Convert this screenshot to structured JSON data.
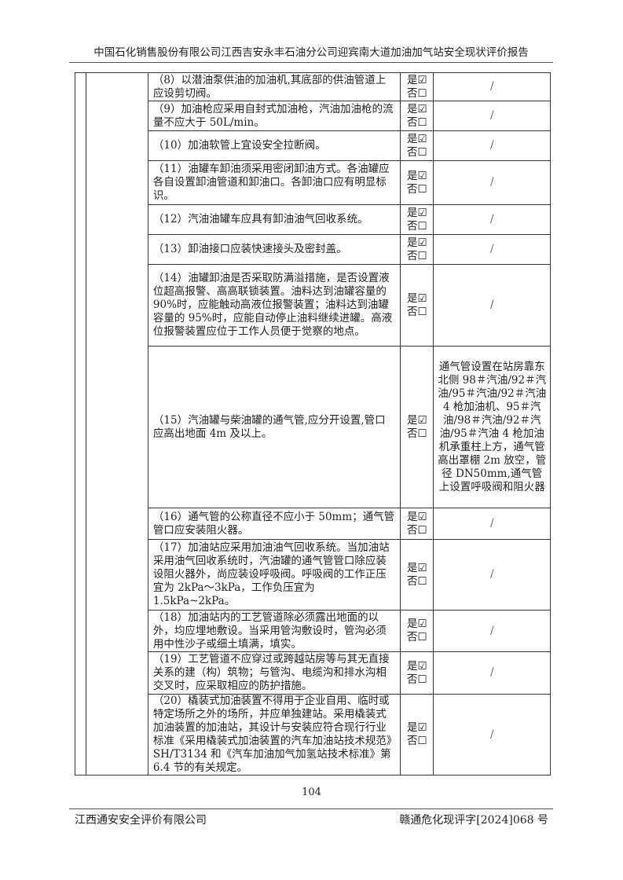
{
  "header": {
    "title": "中国石化销售股份有限公司江西吉安永丰石油分公司迎宾南大道加油加气站安全现状评价报告"
  },
  "table": {
    "rows": [
      {
        "item": "（8）以潜油泵供油的加油机,其底部的供油管道上应设剪切阀。",
        "yes": "是☑",
        "no": "否☐",
        "result": "/"
      },
      {
        "item": "（9）加油枪应采用自封式加油枪，汽油加油枪的流量不应大于 50L/min。",
        "yes": "是☑",
        "no": "否☐",
        "result": "/"
      },
      {
        "item": "（10）加油软管上宜设安全拉断阀。",
        "yes": "是☑",
        "no": "否☐",
        "result": "/"
      },
      {
        "item": "（11）油罐车卸油须采用密闭卸油方式。各油罐应各自设置卸油管道和卸油口。各卸油口应有明显标识。",
        "yes": "是☑",
        "no": "否☐",
        "result": "/"
      },
      {
        "item": "（12）汽油油罐车应具有卸油油气回收系统。",
        "yes": "是☑",
        "no": "否☐",
        "result": "/"
      },
      {
        "item": "（13）卸油接口应装快速接头及密封盖。",
        "yes": "是☑",
        "no": "否☐",
        "result": "/"
      },
      {
        "item": "（14）油罐卸油是否采取防满溢措施，是否设置液位超高报警、高高联锁装置。油料达到油罐容量的 90%时，应能触动高液位报警装置；油料达到油罐容量的 95%时，应能自动停止油料继续进罐。高液位报警装置应位于工作人员便于觉察的地点。",
        "yes": "是☑",
        "no": "否☐",
        "result": "/"
      },
      {
        "item": "（15）汽油罐与柴油罐的通气管,应分开设置,管口应高出地面 4m 及以上。",
        "yes": "是☑",
        "no": "否☐",
        "result": "通气管设置在站房靠东北侧 98＃汽油/92＃汽油/95＃汽油/92＃汽油 4 枪加油机、95＃汽油/98＃汽油/92＃汽油/95＃汽油 4 枪加油机承重柱上方，通气管高出罩棚 2m 放空，管径 DN50mm,通气管上设置呼吸阀和阻火器"
      },
      {
        "item": "（16）通气管的公称直径不应小于 50mm；通气管管口应安装阻火器。",
        "yes": "是☑",
        "no": "否☐",
        "result": "/"
      },
      {
        "item": "（17）加油站应采用加油油气回收系统。当加油站采用油气回收系统时，汽油罐的通气管管口除应装设阻火器外，尚应装设呼吸阀。呼吸阀的工作正压宜为 2kPa～3kPa，工作负压宜为 1.5kPa~2kPa。",
        "yes": "是☑",
        "no": "否☐",
        "result": "/"
      },
      {
        "item": "（18）加油站内的工艺管道除必须露出地面的以外，均应埋地敷设。当采用管沟敷设时，管沟必须用中性沙子或细土填满，填实。",
        "yes": "是☑",
        "no": "否☐",
        "result": "/"
      },
      {
        "item": "（19）工艺管道不应穿过或跨越站房等与其无直接关系的建（构）筑物；与管沟、电缆沟和排水沟相交叉时，应采取相应的防护措施。",
        "yes": "是☑",
        "no": "否☐",
        "result": "/"
      },
      {
        "item": "（20）橇装式加油装置不得用于企业自用、临时或特定场所之外的场所，并应单独建站。采用橇装式加油装置的加油站，其设计与安装应符合现行行业标准《采用橇装式加油装置的汽车加油站技术规范》SH/T3134 和《汽车加油加气加氢站技术标准》第 6.4 节的有关规定。",
        "yes": "是☑",
        "no": "否☐",
        "result": "/"
      }
    ]
  },
  "footer": {
    "page": "104",
    "company": "江西通安安全评价有限公司",
    "report_no": "赣通危化现评字[2024]068 号"
  }
}
